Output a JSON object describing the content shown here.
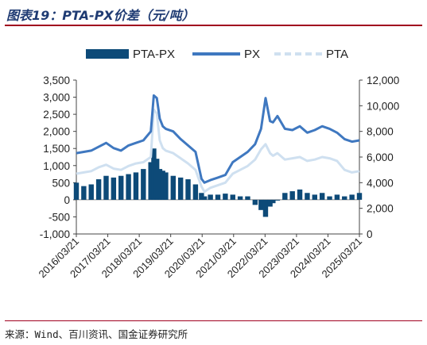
{
  "title": "图表19：PTA-PX价差（元/吨）",
  "source": "来源：Wind、百川资讯、国金证券研究所",
  "chart_data": {
    "type": "bar+line",
    "legend": [
      "PTA-PX",
      "PX",
      "PTA"
    ],
    "left_axis": {
      "min": -1000,
      "max": 3500,
      "step": 500,
      "ticks": [
        "3,500",
        "3,000",
        "2,500",
        "2,000",
        "1,500",
        "1,000",
        "500",
        "0",
        "-500",
        "-1,000"
      ]
    },
    "right_axis": {
      "min": 0,
      "max": 12000,
      "step": 2000,
      "ticks": [
        "12,000",
        "10,000",
        "8,000",
        "6,000",
        "4,000",
        "2,000",
        "0"
      ]
    },
    "x_ticks": [
      "2016/03/21",
      "2017/03/21",
      "2018/03/21",
      "2019/03/21",
      "2020/03/21",
      "2021/03/21",
      "2022/03/21",
      "2023/03/21",
      "2024/03/21",
      "2025/03/21"
    ],
    "x_range": [
      2016.0,
      2025.5
    ],
    "colors": {
      "spread": "#0d4a78",
      "px": "#3f78c0",
      "pta": "#cfe0f0"
    },
    "series": [
      {
        "name": "PX",
        "axis": "right",
        "x": [
          2016.0,
          2016.25,
          2016.5,
          2016.75,
          2017.0,
          2017.25,
          2017.5,
          2017.75,
          2018.0,
          2018.25,
          2018.5,
          2018.6,
          2018.7,
          2018.8,
          2018.9,
          2019.0,
          2019.25,
          2019.5,
          2019.75,
          2020.0,
          2020.2,
          2020.3,
          2020.5,
          2020.75,
          2021.0,
          2021.25,
          2021.5,
          2021.75,
          2022.0,
          2022.2,
          2022.35,
          2022.5,
          2022.6,
          2022.75,
          2023.0,
          2023.25,
          2023.5,
          2023.75,
          2024.0,
          2024.25,
          2024.5,
          2024.75,
          2025.0,
          2025.25,
          2025.5
        ],
        "y": [
          6300,
          6400,
          6500,
          6800,
          7100,
          6700,
          6500,
          6900,
          7100,
          7300,
          8000,
          10800,
          10600,
          9000,
          8400,
          8200,
          8000,
          7400,
          6900,
          6400,
          4300,
          4000,
          4200,
          4400,
          4600,
          5600,
          6000,
          6400,
          7000,
          8200,
          10600,
          8800,
          8700,
          9200,
          8200,
          8100,
          8400,
          7900,
          8100,
          8400,
          8200,
          7900,
          7400,
          7200,
          7300
        ]
      },
      {
        "name": "PTA",
        "axis": "right",
        "x": [
          2016.0,
          2016.25,
          2016.5,
          2016.75,
          2017.0,
          2017.25,
          2017.5,
          2017.75,
          2018.0,
          2018.25,
          2018.5,
          2018.6,
          2018.7,
          2018.8,
          2018.9,
          2019.0,
          2019.25,
          2019.5,
          2019.75,
          2020.0,
          2020.2,
          2020.3,
          2020.5,
          2020.75,
          2021.0,
          2021.25,
          2021.5,
          2021.75,
          2022.0,
          2022.2,
          2022.35,
          2022.5,
          2022.6,
          2022.75,
          2023.0,
          2023.25,
          2023.5,
          2023.75,
          2024.0,
          2024.25,
          2024.5,
          2024.75,
          2025.0,
          2025.25,
          2025.5
        ],
        "y": [
          4700,
          4800,
          4900,
          5200,
          5400,
          5100,
          5000,
          5300,
          5500,
          5600,
          6000,
          9700,
          9400,
          7300,
          6700,
          6500,
          6300,
          5900,
          5500,
          5000,
          3700,
          3300,
          3600,
          3800,
          4000,
          4700,
          5000,
          5300,
          5800,
          6600,
          7000,
          6300,
          6100,
          6300,
          5800,
          5900,
          6000,
          5700,
          5800,
          6000,
          5900,
          5700,
          5000,
          4800,
          4900
        ]
      },
      {
        "name": "PTA-PX",
        "axis": "left",
        "x": [
          2016.0,
          2016.25,
          2016.5,
          2016.75,
          2017.0,
          2017.25,
          2017.5,
          2017.75,
          2018.0,
          2018.25,
          2018.5,
          2018.6,
          2018.7,
          2018.8,
          2018.9,
          2019.0,
          2019.25,
          2019.5,
          2019.75,
          2020.0,
          2020.2,
          2020.3,
          2020.5,
          2020.75,
          2021.0,
          2021.25,
          2021.5,
          2021.75,
          2022.0,
          2022.2,
          2022.35,
          2022.5,
          2022.6,
          2022.75,
          2023.0,
          2023.25,
          2023.5,
          2023.75,
          2024.0,
          2024.25,
          2024.5,
          2024.75,
          2025.0,
          2025.25,
          2025.5
        ],
        "y": [
          500,
          400,
          450,
          600,
          700,
          650,
          700,
          750,
          800,
          900,
          1100,
          1500,
          1200,
          900,
          850,
          800,
          700,
          650,
          600,
          450,
          200,
          100,
          150,
          150,
          180,
          150,
          100,
          100,
          -150,
          -300,
          -500,
          -200,
          -100,
          0,
          200,
          250,
          300,
          200,
          150,
          200,
          100,
          150,
          100,
          150,
          200
        ]
      }
    ]
  }
}
